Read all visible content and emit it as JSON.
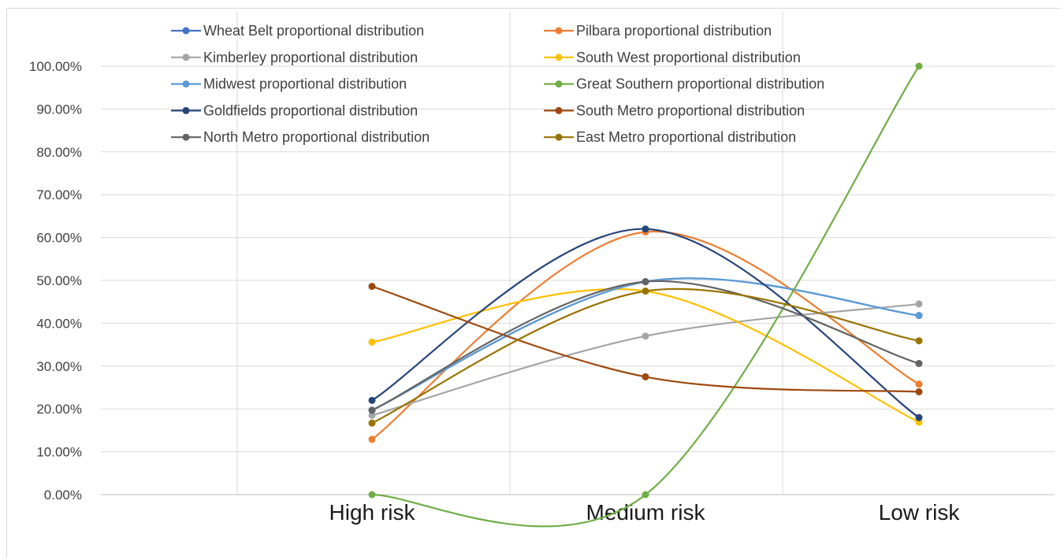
{
  "chart_data": {
    "type": "line",
    "title": "",
    "xlabel": "",
    "ylabel": "",
    "categories": [
      "High risk",
      "Medium risk",
      "Low risk"
    ],
    "ylim": [
      0,
      1
    ],
    "yticks": [
      "0.00%",
      "10.00%",
      "20.00%",
      "30.00%",
      "40.00%",
      "50.00%",
      "60.00%",
      "70.00%",
      "80.00%",
      "90.00%",
      "100.00%"
    ],
    "grid": true,
    "smooth": true,
    "legend_position": "top",
    "series": [
      {
        "name": "Wheat Belt proportional distribution",
        "color": "#4472C4",
        "values": [
          0.197,
          0.497,
          0.418
        ]
      },
      {
        "name": "Pilbara proportional distribution",
        "color": "#ED7D31",
        "values": [
          0.129,
          0.613,
          0.258
        ]
      },
      {
        "name": "Kimberley proportional distribution",
        "color": "#A5A5A5",
        "values": [
          0.185,
          0.37,
          0.445
        ]
      },
      {
        "name": "South West proportional distribution",
        "color": "#FFC000",
        "values": [
          0.356,
          0.475,
          0.169
        ]
      },
      {
        "name": "Midwest proportional distribution",
        "color": "#5B9BD5",
        "values": [
          0.197,
          0.497,
          0.418
        ]
      },
      {
        "name": "Great Southern proportional distribution",
        "color": "#70AD47",
        "values": [
          0.0,
          0.0,
          1.0
        ]
      },
      {
        "name": "Goldfields proportional distribution",
        "color": "#264478",
        "values": [
          0.22,
          0.62,
          0.18
        ]
      },
      {
        "name": "South Metro proportional distribution",
        "color": "#9E480E",
        "values": [
          0.486,
          0.275,
          0.24
        ]
      },
      {
        "name": "North Metro proportional distribution",
        "color": "#636363",
        "values": [
          0.197,
          0.497,
          0.306
        ]
      },
      {
        "name": "East Metro proportional distribution",
        "color": "#997300",
        "values": [
          0.167,
          0.475,
          0.359
        ]
      }
    ]
  }
}
